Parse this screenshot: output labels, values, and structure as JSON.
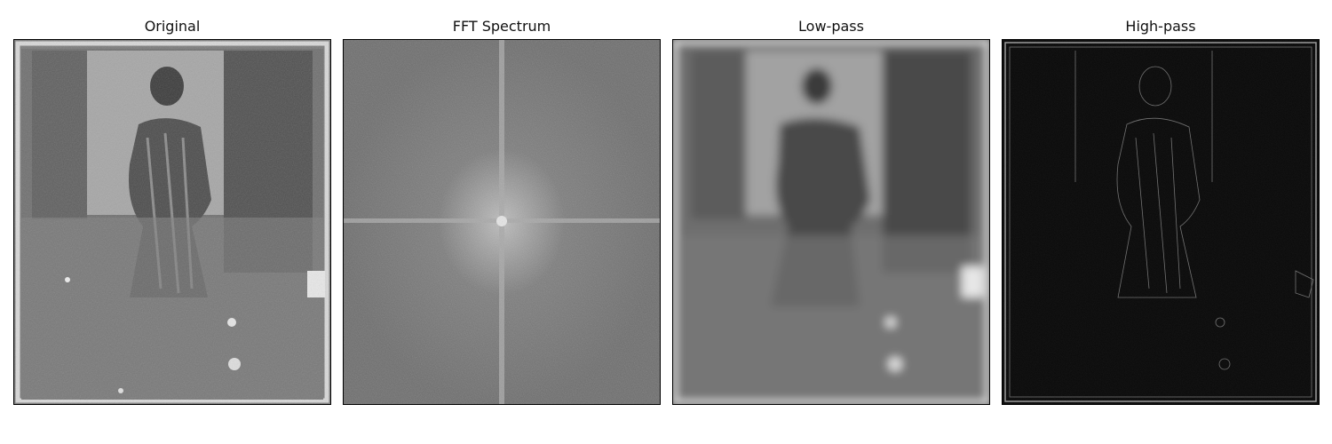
{
  "panels": [
    {
      "title": "Original"
    },
    {
      "title": "FFT Spectrum"
    },
    {
      "title": "Low-pass"
    },
    {
      "title": "High-pass"
    }
  ]
}
